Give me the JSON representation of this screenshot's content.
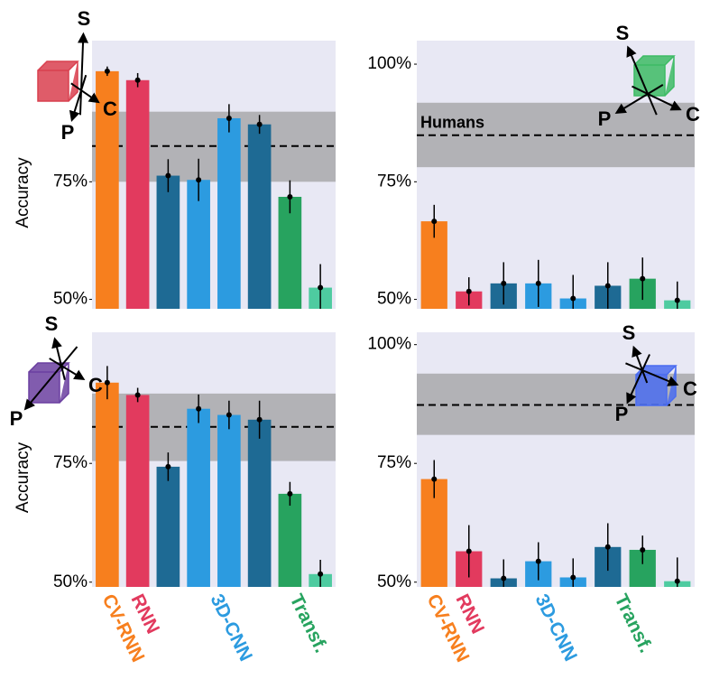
{
  "chart_data": [
    {
      "type": "bar",
      "ylabel": "Accuracy",
      "categories": [
        null,
        null,
        null,
        null,
        null,
        null,
        null,
        null
      ],
      "values": [
        98.5,
        96.6,
        76.3,
        75.4,
        88.5,
        87.2,
        71.8,
        52.5
      ],
      "errors": [
        1,
        1.5,
        3.5,
        4.5,
        3,
        2,
        3.5,
        5
      ],
      "colors": [
        "#f77f1e",
        "#e23a5e",
        "#1e6a94",
        "#2c9be0",
        "#2c9be0",
        "#1e6a94",
        "#27a35f",
        "#4ecba0"
      ],
      "ylim": [
        48,
        105
      ],
      "yticks": [
        {
          "value": 50,
          "label": "50%"
        },
        {
          "value": 75,
          "label": "75%"
        }
      ],
      "human_band": [
        75,
        89.9
      ],
      "human_mean": 82.6,
      "icon_labels": [
        "S",
        "C",
        "P"
      ],
      "icon_color": "#d9404f"
    },
    {
      "type": "bar",
      "annotation": "Humans",
      "categories": [
        null,
        null,
        null,
        null,
        null,
        null,
        null,
        null
      ],
      "values": [
        66.6,
        51.7,
        53.4,
        53.4,
        50.2,
        52.9,
        54.4,
        49.8
      ],
      "errors": [
        3.5,
        3,
        4.5,
        5,
        5,
        5,
        4.5,
        4
      ],
      "colors": [
        "#f77f1e",
        "#e23a5e",
        "#1e6a94",
        "#2c9be0",
        "#2c9be0",
        "#1e6a94",
        "#27a35f",
        "#4ecba0"
      ],
      "ylim": [
        48,
        105
      ],
      "yticks": [
        {
          "value": 50,
          "label": "50%"
        },
        {
          "value": 75,
          "label": "75%"
        },
        {
          "value": 100,
          "label": "100%"
        }
      ],
      "human_band": [
        78.1,
        91.8
      ],
      "human_mean": 84.9,
      "icon_labels": [
        "S",
        "C",
        "P"
      ],
      "icon_color": "#3dbb64"
    },
    {
      "type": "bar",
      "ylabel": "Accuracy",
      "categories": [
        null,
        null,
        null,
        null,
        null,
        null,
        null,
        null
      ],
      "values": [
        92.0,
        89.4,
        74.3,
        86.5,
        85.2,
        84.2,
        68.6,
        51.7
      ],
      "errors": [
        3.5,
        1.5,
        3,
        3,
        3,
        4,
        2.5,
        3
      ],
      "colors": [
        "#f77f1e",
        "#e23a5e",
        "#1e6a94",
        "#2c9be0",
        "#2c9be0",
        "#1e6a94",
        "#27a35f",
        "#4ecba0"
      ],
      "ylim": [
        49,
        102.6
      ],
      "yticks": [
        {
          "value": 50,
          "label": "50%"
        },
        {
          "value": 75,
          "label": "75%"
        }
      ],
      "human_band": [
        75.5,
        89.7
      ],
      "human_mean": 82.7,
      "icon_labels": [
        "S",
        "C",
        "P"
      ],
      "icon_color": "#6b3fa0"
    },
    {
      "type": "bar",
      "categories": [
        null,
        null,
        null,
        null,
        null,
        null,
        null,
        null
      ],
      "values": [
        71.7,
        56.5,
        50.8,
        54.4,
        51.0,
        57.4,
        56.8,
        50.2
      ],
      "errors": [
        4,
        5.5,
        4,
        4,
        4,
        5,
        3,
        5
      ],
      "colors": [
        "#f77f1e",
        "#e23a5e",
        "#1e6a94",
        "#2c9be0",
        "#2c9be0",
        "#1e6a94",
        "#27a35f",
        "#4ecba0"
      ],
      "ylim": [
        49,
        102.6
      ],
      "yticks": [
        {
          "value": 50,
          "label": "50%"
        },
        {
          "value": 75,
          "label": "75%"
        },
        {
          "value": 100,
          "label": "100%"
        }
      ],
      "human_band": [
        81,
        93.9
      ],
      "human_mean": 87.3,
      "icon_labels": [
        "S",
        "C",
        "P"
      ],
      "icon_color": "#4a6cf0"
    }
  ],
  "model_groups": [
    {
      "name": "CV-RNN",
      "color": "#f77f1e"
    },
    {
      "name": "RNN",
      "color": "#e23a5e"
    },
    {
      "name": "3D-CNN",
      "color": "#2c9be0"
    },
    {
      "name": "Transf.",
      "color": "#27a35f"
    }
  ]
}
